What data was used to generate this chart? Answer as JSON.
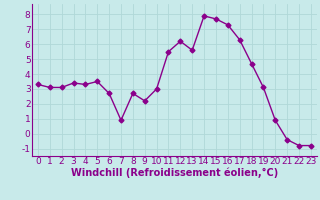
{
  "x": [
    0,
    1,
    2,
    3,
    4,
    5,
    6,
    7,
    8,
    9,
    10,
    11,
    12,
    13,
    14,
    15,
    16,
    17,
    18,
    19,
    20,
    21,
    22,
    23
  ],
  "y": [
    3.3,
    3.1,
    3.1,
    3.4,
    3.3,
    3.5,
    2.7,
    0.9,
    2.7,
    2.2,
    3.0,
    5.5,
    6.2,
    5.6,
    7.9,
    7.7,
    7.3,
    6.3,
    4.7,
    3.1,
    0.9,
    -0.4,
    -0.8,
    -0.8
  ],
  "line_color": "#8B008B",
  "marker_color": "#8B008B",
  "bg_color": "#c8eaea",
  "grid_color": "#b0d8d8",
  "xlabel": "Windchill (Refroidissement éolien,°C)",
  "ylim": [
    -1.5,
    8.7
  ],
  "xlim": [
    -0.5,
    23.5
  ],
  "yticks": [
    -1,
    0,
    1,
    2,
    3,
    4,
    5,
    6,
    7,
    8
  ],
  "xticks": [
    0,
    1,
    2,
    3,
    4,
    5,
    6,
    7,
    8,
    9,
    10,
    11,
    12,
    13,
    14,
    15,
    16,
    17,
    18,
    19,
    20,
    21,
    22,
    23
  ],
  "tick_label_color": "#8B008B",
  "axis_color": "#8B008B",
  "xlabel_color": "#8B008B",
  "xlabel_fontsize": 7,
  "tick_fontsize": 6.5,
  "linewidth": 1.0,
  "markersize": 2.5
}
